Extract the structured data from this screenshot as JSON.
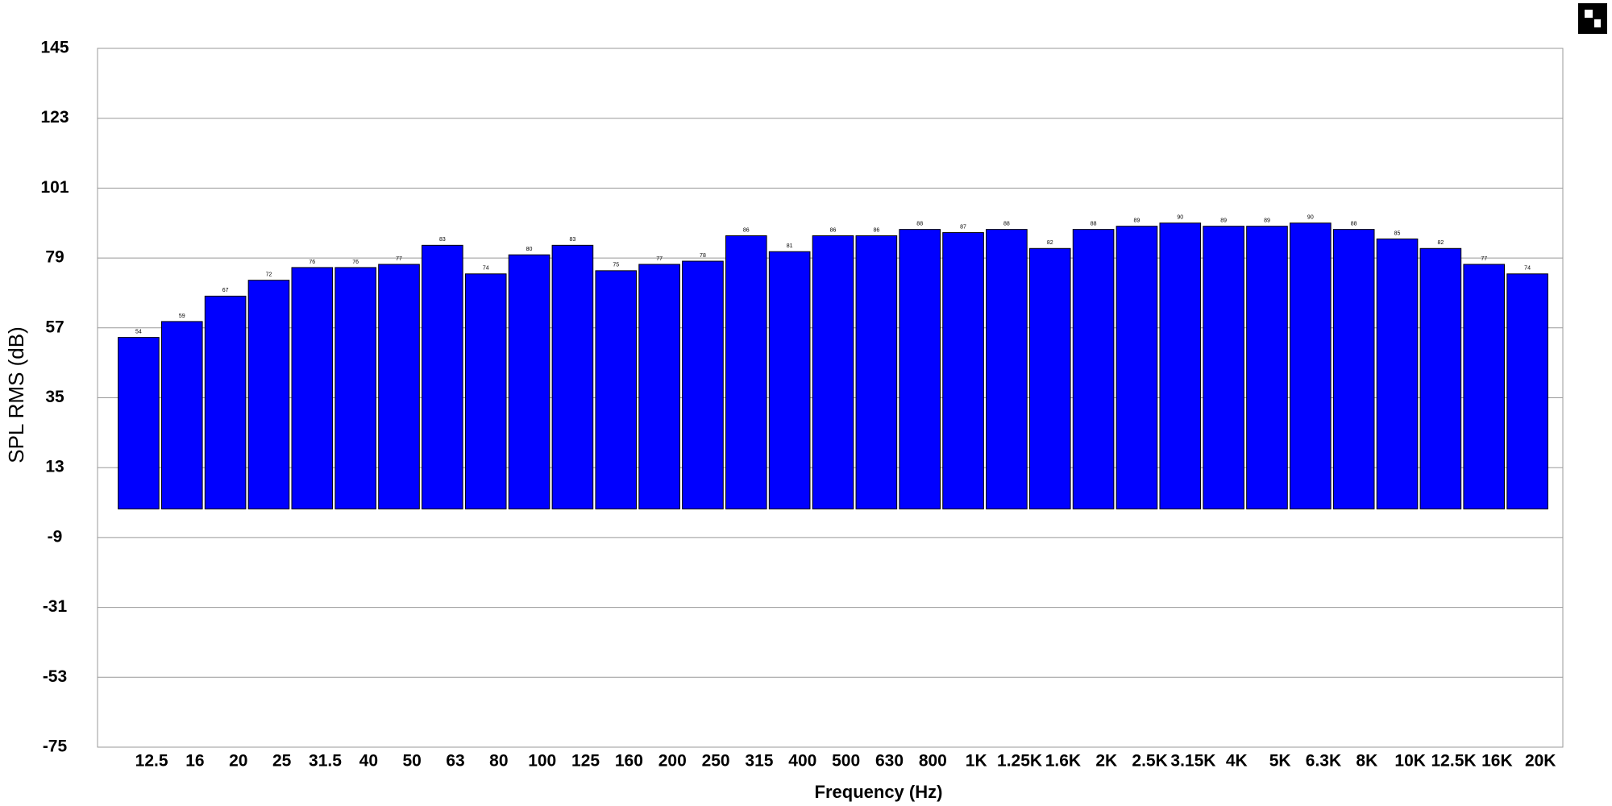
{
  "chart_data": {
    "type": "bar",
    "x_label": "Frequency (Hz)",
    "y_label": "SPL RMS (dB)",
    "categories": [
      "12.5",
      "16",
      "20",
      "25",
      "31.5",
      "40",
      "50",
      "63",
      "80",
      "100",
      "125",
      "160",
      "200",
      "250",
      "315",
      "400",
      "500",
      "630",
      "800",
      "1K",
      "1.25K",
      "1.6K",
      "2K",
      "2.5K",
      "3.15K",
      "4K",
      "5K",
      "6.3K",
      "8K",
      "10K",
      "12.5K",
      "16K",
      "20K"
    ],
    "values": [
      54,
      59,
      67,
      72,
      76,
      76,
      77,
      83,
      74,
      80,
      83,
      75,
      77,
      78,
      86,
      81,
      86,
      86,
      88,
      87,
      88,
      82,
      88,
      89,
      90,
      89,
      89,
      90,
      88,
      85,
      82,
      77,
      74
    ],
    "color": "#0000ff",
    "ylim": [
      -75,
      145
    ],
    "yticks": [
      -75,
      -53,
      -31,
      -9,
      13,
      35,
      57,
      79,
      101,
      123,
      145
    ],
    "grid": true
  }
}
